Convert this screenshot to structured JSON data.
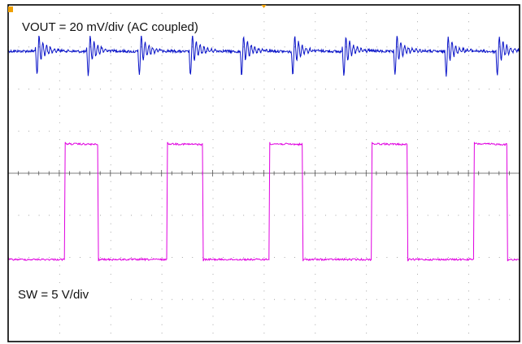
{
  "chart_data": {
    "type": "line",
    "title": "",
    "xlabel": "",
    "ylabel": "",
    "grid": true,
    "grid_divisions": {
      "x": 10,
      "y": 8
    },
    "trigger_marker_color": "#f0a000",
    "channel_marker_color": "#f0a000",
    "series": [
      {
        "label": "VOUT = 20 mV/div (AC coupled)",
        "color": "#0a14c8",
        "baseline_div": 1.1,
        "switching_periods": [
          {
            "rise_div": 0.55,
            "fall_div": 1.55
          },
          {
            "rise_div": 2.55,
            "fall_div": 3.55
          },
          {
            "rise_div": 4.55,
            "fall_div": 5.55
          },
          {
            "rise_div": 6.55,
            "fall_div": 7.55
          },
          {
            "rise_div": 8.55,
            "fall_div": 9.55
          }
        ]
      },
      {
        "label": "SW = 5 V/div",
        "color": "#e000e0",
        "low_level_div": 6.05,
        "high_level_div": 3.3,
        "pulses": [
          {
            "rise_div": 1.1,
            "fall_div": 1.75
          },
          {
            "rise_div": 3.1,
            "fall_div": 3.8
          },
          {
            "rise_div": 5.1,
            "fall_div": 5.75
          },
          {
            "rise_div": 7.1,
            "fall_div": 7.8
          },
          {
            "rise_div": 9.1,
            "fall_div": 9.75
          }
        ]
      }
    ]
  }
}
